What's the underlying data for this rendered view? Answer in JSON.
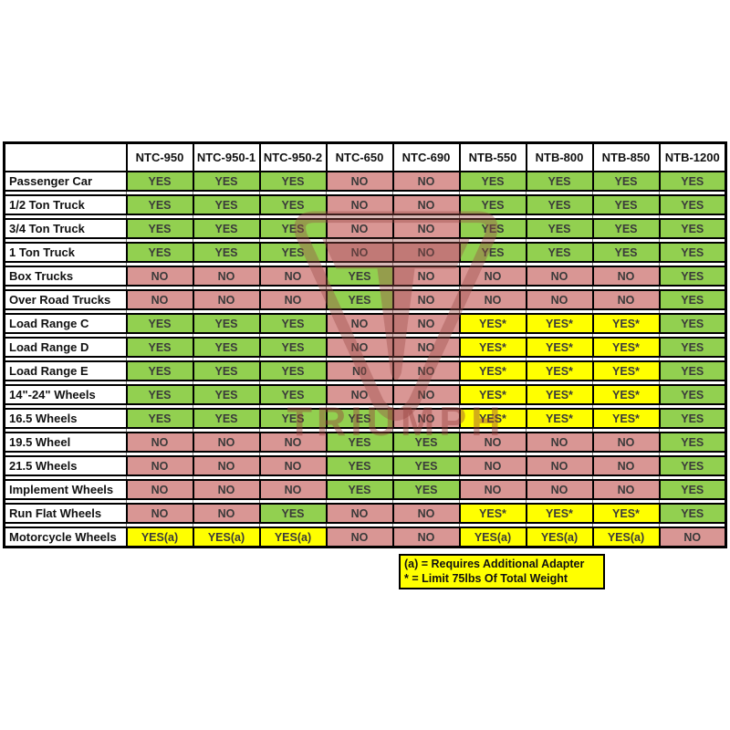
{
  "chart_data": {
    "type": "table",
    "title": "Tire changer / wheel compatibility matrix",
    "columns": [
      "NTC-950",
      "NTC-950-1",
      "NTC-950-2",
      "NTC-650",
      "NTC-690",
      "NTB-550",
      "NTB-800",
      "NTB-850",
      "NTB-1200"
    ],
    "rows": [
      {
        "label": "Passenger Car",
        "cells": [
          {
            "v": "YES",
            "s": "g"
          },
          {
            "v": "YES",
            "s": "g"
          },
          {
            "v": "YES",
            "s": "g"
          },
          {
            "v": "NO",
            "s": "r"
          },
          {
            "v": "NO",
            "s": "r"
          },
          {
            "v": "YES",
            "s": "g"
          },
          {
            "v": "YES",
            "s": "g"
          },
          {
            "v": "YES",
            "s": "g"
          },
          {
            "v": "YES",
            "s": "g"
          }
        ]
      },
      {
        "label": "1/2 Ton Truck",
        "cells": [
          {
            "v": "YES",
            "s": "g"
          },
          {
            "v": "YES",
            "s": "g"
          },
          {
            "v": "YES",
            "s": "g"
          },
          {
            "v": "NO",
            "s": "r"
          },
          {
            "v": "NO",
            "s": "r"
          },
          {
            "v": "YES",
            "s": "g"
          },
          {
            "v": "YES",
            "s": "g"
          },
          {
            "v": "YES",
            "s": "g"
          },
          {
            "v": "YES",
            "s": "g"
          }
        ]
      },
      {
        "label": "3/4 Ton Truck",
        "cells": [
          {
            "v": "YES",
            "s": "g"
          },
          {
            "v": "YES",
            "s": "g"
          },
          {
            "v": "YES",
            "s": "g"
          },
          {
            "v": "NO",
            "s": "r"
          },
          {
            "v": "NO",
            "s": "r"
          },
          {
            "v": "YES",
            "s": "g"
          },
          {
            "v": "YES",
            "s": "g"
          },
          {
            "v": "YES",
            "s": "g"
          },
          {
            "v": "YES",
            "s": "g"
          }
        ]
      },
      {
        "label": "1 Ton Truck",
        "cells": [
          {
            "v": "YES",
            "s": "g"
          },
          {
            "v": "YES",
            "s": "g"
          },
          {
            "v": "YES",
            "s": "g"
          },
          {
            "v": "NO",
            "s": "r"
          },
          {
            "v": "NO",
            "s": "r"
          },
          {
            "v": "YES",
            "s": "g"
          },
          {
            "v": "YES",
            "s": "g"
          },
          {
            "v": "YES",
            "s": "g"
          },
          {
            "v": "YES",
            "s": "g"
          }
        ]
      },
      {
        "label": "Box Trucks",
        "cells": [
          {
            "v": "NO",
            "s": "r"
          },
          {
            "v": "NO",
            "s": "r"
          },
          {
            "v": "NO",
            "s": "r"
          },
          {
            "v": "YES",
            "s": "g"
          },
          {
            "v": "NO",
            "s": "r"
          },
          {
            "v": "NO",
            "s": "r"
          },
          {
            "v": "NO",
            "s": "r"
          },
          {
            "v": "NO",
            "s": "r"
          },
          {
            "v": "YES",
            "s": "g"
          }
        ]
      },
      {
        "label": "Over Road Trucks",
        "cells": [
          {
            "v": "NO",
            "s": "r"
          },
          {
            "v": "NO",
            "s": "r"
          },
          {
            "v": "NO",
            "s": "r"
          },
          {
            "v": "YES",
            "s": "g"
          },
          {
            "v": "NO",
            "s": "r"
          },
          {
            "v": "NO",
            "s": "r"
          },
          {
            "v": "NO",
            "s": "r"
          },
          {
            "v": "NO",
            "s": "r"
          },
          {
            "v": "YES",
            "s": "g"
          }
        ]
      },
      {
        "label": "Load Range C",
        "cells": [
          {
            "v": "YES",
            "s": "g"
          },
          {
            "v": "YES",
            "s": "g"
          },
          {
            "v": "YES",
            "s": "g"
          },
          {
            "v": "NO",
            "s": "r"
          },
          {
            "v": "NO",
            "s": "r"
          },
          {
            "v": "YES*",
            "s": "y"
          },
          {
            "v": "YES*",
            "s": "y"
          },
          {
            "v": "YES*",
            "s": "y"
          },
          {
            "v": "YES",
            "s": "g"
          }
        ]
      },
      {
        "label": "Load Range D",
        "cells": [
          {
            "v": "YES",
            "s": "g"
          },
          {
            "v": "YES",
            "s": "g"
          },
          {
            "v": "YES",
            "s": "g"
          },
          {
            "v": "NO",
            "s": "r"
          },
          {
            "v": "NO",
            "s": "r"
          },
          {
            "v": "YES*",
            "s": "y"
          },
          {
            "v": "YES*",
            "s": "y"
          },
          {
            "v": "YES*",
            "s": "y"
          },
          {
            "v": "YES",
            "s": "g"
          }
        ]
      },
      {
        "label": "Load Range E",
        "cells": [
          {
            "v": "YES",
            "s": "g"
          },
          {
            "v": "YES",
            "s": "g"
          },
          {
            "v": "YES",
            "s": "g"
          },
          {
            "v": "N0",
            "s": "r"
          },
          {
            "v": "NO",
            "s": "r"
          },
          {
            "v": "YES*",
            "s": "y"
          },
          {
            "v": "YES*",
            "s": "y"
          },
          {
            "v": "YES*",
            "s": "y"
          },
          {
            "v": "YES",
            "s": "g"
          }
        ]
      },
      {
        "label": "14\"-24\" Wheels",
        "cells": [
          {
            "v": "YES",
            "s": "g"
          },
          {
            "v": "YES",
            "s": "g"
          },
          {
            "v": "YES",
            "s": "g"
          },
          {
            "v": "NO",
            "s": "r"
          },
          {
            "v": "NO",
            "s": "r"
          },
          {
            "v": "YES*",
            "s": "y"
          },
          {
            "v": "YES*",
            "s": "y"
          },
          {
            "v": "YES*",
            "s": "y"
          },
          {
            "v": "YES",
            "s": "g"
          }
        ]
      },
      {
        "label": "16.5 Wheels",
        "cells": [
          {
            "v": "YES",
            "s": "g"
          },
          {
            "v": "YES",
            "s": "g"
          },
          {
            "v": "YES",
            "s": "g"
          },
          {
            "v": "YES",
            "s": "g"
          },
          {
            "v": "NO",
            "s": "r"
          },
          {
            "v": "YES*",
            "s": "y"
          },
          {
            "v": "YES*",
            "s": "y"
          },
          {
            "v": "YES*",
            "s": "y"
          },
          {
            "v": "YES",
            "s": "g"
          }
        ]
      },
      {
        "label": "19.5 Wheel",
        "cells": [
          {
            "v": "NO",
            "s": "r"
          },
          {
            "v": "NO",
            "s": "r"
          },
          {
            "v": "NO",
            "s": "r"
          },
          {
            "v": "YES",
            "s": "g"
          },
          {
            "v": "YES",
            "s": "g"
          },
          {
            "v": "NO",
            "s": "r"
          },
          {
            "v": "NO",
            "s": "r"
          },
          {
            "v": "NO",
            "s": "r"
          },
          {
            "v": "YES",
            "s": "g"
          }
        ]
      },
      {
        "label": "21.5 Wheels",
        "cells": [
          {
            "v": "NO",
            "s": "r"
          },
          {
            "v": "NO",
            "s": "r"
          },
          {
            "v": "NO",
            "s": "r"
          },
          {
            "v": "YES",
            "s": "g"
          },
          {
            "v": "YES",
            "s": "g"
          },
          {
            "v": "NO",
            "s": "r"
          },
          {
            "v": "NO",
            "s": "r"
          },
          {
            "v": "NO",
            "s": "r"
          },
          {
            "v": "YES",
            "s": "g"
          }
        ]
      },
      {
        "label": "Implement Wheels",
        "cells": [
          {
            "v": "NO",
            "s": "r"
          },
          {
            "v": "NO",
            "s": "r"
          },
          {
            "v": "NO",
            "s": "r"
          },
          {
            "v": "YES",
            "s": "g"
          },
          {
            "v": "YES",
            "s": "g"
          },
          {
            "v": "NO",
            "s": "r"
          },
          {
            "v": "NO",
            "s": "r"
          },
          {
            "v": "NO",
            "s": "r"
          },
          {
            "v": "YES",
            "s": "g"
          }
        ]
      },
      {
        "label": "Run Flat Wheels",
        "cells": [
          {
            "v": "NO",
            "s": "r"
          },
          {
            "v": "NO",
            "s": "r"
          },
          {
            "v": "YES",
            "s": "g"
          },
          {
            "v": "NO",
            "s": "r"
          },
          {
            "v": "NO",
            "s": "r"
          },
          {
            "v": "YES*",
            "s": "y"
          },
          {
            "v": "YES*",
            "s": "y"
          },
          {
            "v": "YES*",
            "s": "y"
          },
          {
            "v": "YES",
            "s": "g"
          }
        ]
      },
      {
        "label": "Motorcycle Wheels",
        "cells": [
          {
            "v": "YES(a)",
            "s": "y"
          },
          {
            "v": "YES(a)",
            "s": "y"
          },
          {
            "v": "YES(a)",
            "s": "y"
          },
          {
            "v": "NO",
            "s": "r"
          },
          {
            "v": "NO",
            "s": "r"
          },
          {
            "v": "YES(a)",
            "s": "y"
          },
          {
            "v": "YES(a)",
            "s": "y"
          },
          {
            "v": "YES(a)",
            "s": "y"
          },
          {
            "v": "NO",
            "s": "r"
          }
        ]
      }
    ],
    "footnotes": [
      "(a) = Requires Additional Adapter",
      "* = Limit 75lbs Of Total Weight"
    ],
    "watermark_text": "TRIUMPH",
    "colors": {
      "yes": "#92D050",
      "no": "#D99694",
      "conditional": "#FFFF00",
      "border": "#000000",
      "watermark": "#9a4a46"
    },
    "layout_hints": {
      "grid": "thick black cell borders with thin white spacer rows between data rows",
      "legend_position": "footnote box below NTC-690/NTB-800 columns"
    }
  }
}
